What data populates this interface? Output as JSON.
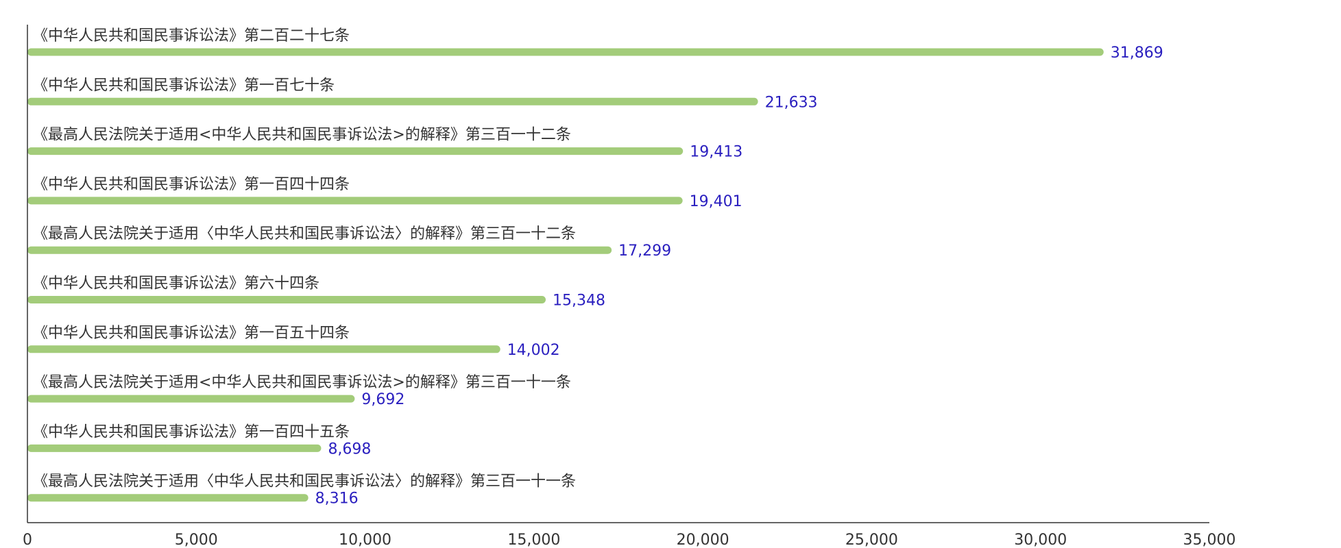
{
  "chart_data": {
    "type": "bar",
    "orientation": "horizontal",
    "categories": [
      "《中华人民共和国民事诉讼法》第二百二十七条",
      "《中华人民共和国民事诉讼法》第一百七十条",
      "《最高人民法院关于适用<中华人民共和国民事诉讼法>的解释》第三百一十二条",
      "《中华人民共和国民事诉讼法》第一百四十四条",
      "《最高人民法院关于适用〈中华人民共和国民事诉讼法〉的解释》第三百一十二条",
      "《中华人民共和国民事诉讼法》第六十四条",
      "《中华人民共和国民事诉讼法》第一百五十四条",
      "《最高人民法院关于适用<中华人民共和国民事诉讼法>的解释》第三百一十一条",
      "《中华人民共和国民事诉讼法》第一百四十五条",
      "《最高人民法院关于适用〈中华人民共和国民事诉讼法〉的解释》第三百一十一条"
    ],
    "values": [
      31869,
      21633,
      19413,
      19401,
      17299,
      15348,
      14002,
      9692,
      8698,
      8316
    ],
    "value_labels": [
      "31,869",
      "21,633",
      "19,413",
      "19,401",
      "17,299",
      "15,348",
      "14,002",
      "9,692",
      "8,698",
      "8,316"
    ],
    "xlim": [
      0,
      35000
    ],
    "x_ticks": [
      0,
      5000,
      10000,
      15000,
      20000,
      25000,
      30000,
      35000
    ],
    "x_tick_labels": [
      "0",
      "5,000",
      "10,000",
      "15,000",
      "20,000",
      "25,000",
      "30,000",
      "35,000"
    ],
    "title": "",
    "xlabel": "",
    "ylabel": "",
    "grid": false,
    "legend": "none",
    "colors": {
      "bar": "#a3cc7a",
      "value_label": "#2a1fbf",
      "axis": "#333333",
      "text": "#333333"
    }
  }
}
